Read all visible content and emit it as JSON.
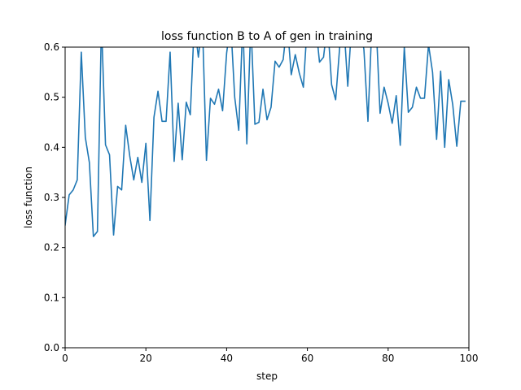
{
  "chart_data": {
    "type": "line",
    "title": "loss function B to A of gen in training",
    "xlabel": "step",
    "ylabel": "loss function",
    "xlim": [
      0,
      100
    ],
    "ylim": [
      0,
      0.6
    ],
    "xticks": [
      0,
      20,
      40,
      60,
      80,
      100
    ],
    "xtick_labels": [
      "0",
      "20",
      "40",
      "60",
      "80",
      "100"
    ],
    "yticks": [
      0.0,
      0.1,
      0.2,
      0.3,
      0.4,
      0.5,
      0.6
    ],
    "ytick_labels": [
      "0.0",
      "0.1",
      "0.2",
      "0.3",
      "0.4",
      "0.5",
      "0.6"
    ],
    "grid": false,
    "series": [
      {
        "color": "#1f77b4",
        "x": [
          0,
          1,
          2,
          3,
          4,
          5,
          6,
          7,
          8,
          9,
          10,
          11,
          12,
          13,
          14,
          15,
          16,
          17,
          18,
          19,
          20,
          21,
          22,
          23,
          24,
          25,
          26,
          27,
          28,
          29,
          30,
          31,
          32,
          33,
          34,
          35,
          36,
          37,
          38,
          39,
          40,
          41,
          42,
          43,
          44,
          45,
          46,
          47,
          48,
          49,
          50,
          51,
          52,
          53,
          54,
          55,
          56,
          57,
          58,
          59,
          60,
          61,
          62,
          63,
          64,
          65,
          66,
          67,
          68,
          69,
          70,
          71,
          72,
          73,
          74,
          75,
          76,
          77,
          78,
          79,
          80,
          81,
          82,
          83,
          84,
          85,
          86,
          87,
          88,
          89,
          90,
          91,
          92,
          93,
          94,
          95,
          96,
          97,
          98,
          99
        ],
        "y": [
          0.245,
          0.305,
          0.315,
          0.335,
          0.59,
          0.42,
          0.37,
          0.222,
          0.232,
          0.65,
          0.405,
          0.385,
          0.225,
          0.322,
          0.315,
          0.444,
          0.383,
          0.335,
          0.38,
          0.33,
          0.408,
          0.254,
          0.46,
          0.512,
          0.452,
          0.452,
          0.59,
          0.372,
          0.488,
          0.375,
          0.49,
          0.465,
          0.65,
          0.58,
          0.65,
          0.374,
          0.498,
          0.486,
          0.516,
          0.473,
          0.588,
          0.65,
          0.5,
          0.434,
          0.65,
          0.407,
          0.65,
          0.446,
          0.45,
          0.516,
          0.455,
          0.48,
          0.572,
          0.56,
          0.575,
          0.65,
          0.545,
          0.585,
          0.548,
          0.52,
          0.65,
          0.65,
          0.65,
          0.57,
          0.58,
          0.65,
          0.525,
          0.495,
          0.6,
          0.65,
          0.522,
          0.65,
          0.65,
          0.65,
          0.595,
          0.452,
          0.65,
          0.65,
          0.468,
          0.52,
          0.488,
          0.448,
          0.503,
          0.404,
          0.6,
          0.47,
          0.48,
          0.52,
          0.498,
          0.498,
          0.605,
          0.55,
          0.416,
          0.552,
          0.4,
          0.535,
          0.485,
          0.402,
          0.492,
          0.492
        ]
      }
    ]
  }
}
